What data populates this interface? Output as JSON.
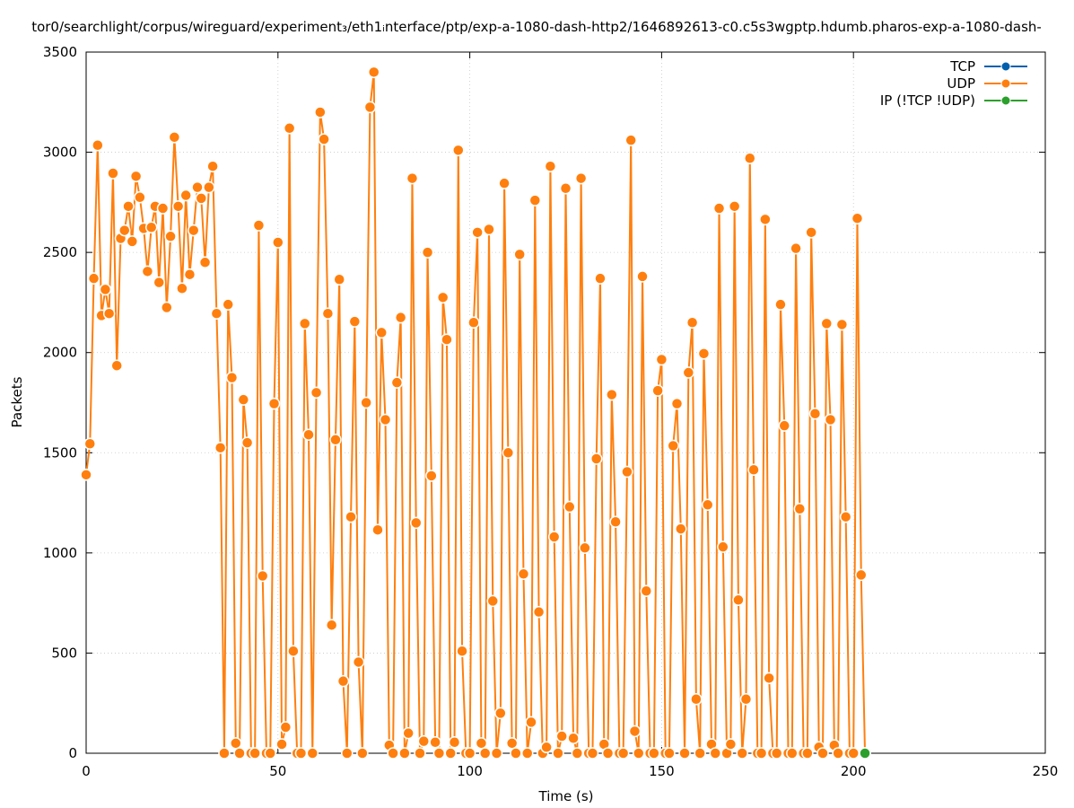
{
  "chart_data": {
    "type": "line",
    "title": "tor0/searchlight/corpus/wireguard/experiment₃/eth1ᵢnterface/ptp/exp-a-1080-dash-http2/1646892613-c0.c5s3wgptp.hdumb.pharos-exp-a-1080-dash-",
    "xlabel": "Time (s)",
    "ylabel": "Packets",
    "xlim": [
      0,
      250
    ],
    "ylim": [
      0,
      3500
    ],
    "x_ticks": [
      0,
      50,
      100,
      150,
      200,
      250
    ],
    "y_ticks": [
      0,
      500,
      1000,
      1500,
      2000,
      2500,
      3000,
      3500
    ],
    "grid": true,
    "legend_position": "top-right",
    "series": [
      {
        "name": "TCP",
        "color": "#0060ad",
        "points": []
      },
      {
        "name": "UDP",
        "color": "#ff7f0e",
        "points": [
          [
            0,
            1390
          ],
          [
            1,
            1545
          ],
          [
            2,
            2370
          ],
          [
            3,
            3035
          ],
          [
            4,
            2185
          ],
          [
            5,
            2315
          ],
          [
            6,
            2195
          ],
          [
            7,
            2895
          ],
          [
            8,
            1935
          ],
          [
            9,
            2570
          ],
          [
            10,
            2610
          ],
          [
            11,
            2730
          ],
          [
            12,
            2555
          ],
          [
            13,
            2880
          ],
          [
            14,
            2775
          ],
          [
            15,
            2620
          ],
          [
            16,
            2405
          ],
          [
            17,
            2625
          ],
          [
            18,
            2730
          ],
          [
            19,
            2350
          ],
          [
            20,
            2720
          ],
          [
            21,
            2225
          ],
          [
            22,
            2580
          ],
          [
            23,
            3075
          ],
          [
            24,
            2730
          ],
          [
            25,
            2320
          ],
          [
            26,
            2785
          ],
          [
            27,
            2390
          ],
          [
            28,
            2610
          ],
          [
            29,
            2825
          ],
          [
            30,
            2770
          ],
          [
            31,
            2450
          ],
          [
            32,
            2825
          ],
          [
            33,
            2930
          ],
          [
            34,
            2195
          ],
          [
            35,
            1525
          ],
          [
            36,
            0
          ],
          [
            37,
            2240
          ],
          [
            38,
            1875
          ],
          [
            39,
            50
          ],
          [
            40,
            0
          ],
          [
            41,
            1765
          ],
          [
            42,
            1550
          ],
          [
            43,
            0
          ],
          [
            44,
            0
          ],
          [
            45,
            2635
          ],
          [
            46,
            885
          ],
          [
            47,
            0
          ],
          [
            48,
            0
          ],
          [
            49,
            1745
          ],
          [
            50,
            2550
          ],
          [
            51,
            45
          ],
          [
            52,
            130
          ],
          [
            53,
            3120
          ],
          [
            54,
            510
          ],
          [
            55,
            0
          ],
          [
            56,
            0
          ],
          [
            57,
            2145
          ],
          [
            58,
            1590
          ],
          [
            59,
            0
          ],
          [
            60,
            1800
          ],
          [
            61,
            3200
          ],
          [
            62,
            3065
          ],
          [
            63,
            2195
          ],
          [
            64,
            640
          ],
          [
            65,
            1565
          ],
          [
            66,
            2365
          ],
          [
            67,
            360
          ],
          [
            68,
            0
          ],
          [
            69,
            1180
          ],
          [
            70,
            2155
          ],
          [
            71,
            455
          ],
          [
            72,
            0
          ],
          [
            73,
            1750
          ],
          [
            74,
            3225
          ],
          [
            75,
            3400
          ],
          [
            76,
            1115
          ],
          [
            77,
            2100
          ],
          [
            78,
            1665
          ],
          [
            79,
            40
          ],
          [
            80,
            0
          ],
          [
            81,
            1850
          ],
          [
            82,
            2175
          ],
          [
            83,
            0
          ],
          [
            84,
            100
          ],
          [
            85,
            2870
          ],
          [
            86,
            1150
          ],
          [
            87,
            0
          ],
          [
            88,
            60
          ],
          [
            89,
            2500
          ],
          [
            90,
            1385
          ],
          [
            91,
            55
          ],
          [
            92,
            0
          ],
          [
            93,
            2275
          ],
          [
            94,
            2065
          ],
          [
            95,
            0
          ],
          [
            96,
            55
          ],
          [
            97,
            3010
          ],
          [
            98,
            510
          ],
          [
            99,
            0
          ],
          [
            100,
            0
          ],
          [
            101,
            2150
          ],
          [
            102,
            2600
          ],
          [
            103,
            50
          ],
          [
            104,
            0
          ],
          [
            105,
            2615
          ],
          [
            106,
            760
          ],
          [
            107,
            0
          ],
          [
            108,
            200
          ],
          [
            109,
            2845
          ],
          [
            110,
            1500
          ],
          [
            111,
            50
          ],
          [
            112,
            0
          ],
          [
            113,
            2490
          ],
          [
            114,
            895
          ],
          [
            115,
            0
          ],
          [
            116,
            155
          ],
          [
            117,
            2760
          ],
          [
            118,
            705
          ],
          [
            119,
            0
          ],
          [
            120,
            30
          ],
          [
            121,
            2930
          ],
          [
            122,
            1080
          ],
          [
            123,
            0
          ],
          [
            124,
            85
          ],
          [
            125,
            2820
          ],
          [
            126,
            1230
          ],
          [
            127,
            75
          ],
          [
            128,
            0
          ],
          [
            129,
            2870
          ],
          [
            130,
            1025
          ],
          [
            131,
            0
          ],
          [
            132,
            0
          ],
          [
            133,
            1470
          ],
          [
            134,
            2370
          ],
          [
            135,
            45
          ],
          [
            136,
            0
          ],
          [
            137,
            1790
          ],
          [
            138,
            1155
          ],
          [
            139,
            0
          ],
          [
            140,
            0
          ],
          [
            141,
            1405
          ],
          [
            142,
            3060
          ],
          [
            143,
            110
          ],
          [
            144,
            0
          ],
          [
            145,
            2380
          ],
          [
            146,
            810
          ],
          [
            147,
            0
          ],
          [
            148,
            0
          ],
          [
            149,
            1810
          ],
          [
            150,
            1965
          ],
          [
            151,
            0
          ],
          [
            152,
            0
          ],
          [
            153,
            1535
          ],
          [
            154,
            1745
          ],
          [
            155,
            1120
          ],
          [
            156,
            0
          ],
          [
            157,
            1900
          ],
          [
            158,
            2150
          ],
          [
            159,
            270
          ],
          [
            160,
            0
          ],
          [
            161,
            1995
          ],
          [
            162,
            1240
          ],
          [
            163,
            45
          ],
          [
            164,
            0
          ],
          [
            165,
            2720
          ],
          [
            166,
            1030
          ],
          [
            167,
            0
          ],
          [
            168,
            45
          ],
          [
            169,
            2730
          ],
          [
            170,
            765
          ],
          [
            171,
            0
          ],
          [
            172,
            270
          ],
          [
            173,
            2970
          ],
          [
            174,
            1415
          ],
          [
            175,
            0
          ],
          [
            176,
            0
          ],
          [
            177,
            2665
          ],
          [
            178,
            375
          ],
          [
            179,
            0
          ],
          [
            180,
            0
          ],
          [
            181,
            2240
          ],
          [
            182,
            1635
          ],
          [
            183,
            0
          ],
          [
            184,
            0
          ],
          [
            185,
            2520
          ],
          [
            186,
            1220
          ],
          [
            187,
            0
          ],
          [
            188,
            0
          ],
          [
            189,
            2600
          ],
          [
            190,
            1695
          ],
          [
            191,
            30
          ],
          [
            192,
            0
          ],
          [
            193,
            2145
          ],
          [
            194,
            1665
          ],
          [
            195,
            40
          ],
          [
            196,
            0
          ],
          [
            197,
            2140
          ],
          [
            198,
            1180
          ],
          [
            199,
            0
          ],
          [
            200,
            0
          ],
          [
            201,
            2670
          ],
          [
            202,
            890
          ],
          [
            203,
            0
          ]
        ]
      },
      {
        "name": "IP (!TCP  !UDP)",
        "color": "#2ca02c",
        "points": [
          [
            203,
            0
          ]
        ]
      }
    ]
  }
}
